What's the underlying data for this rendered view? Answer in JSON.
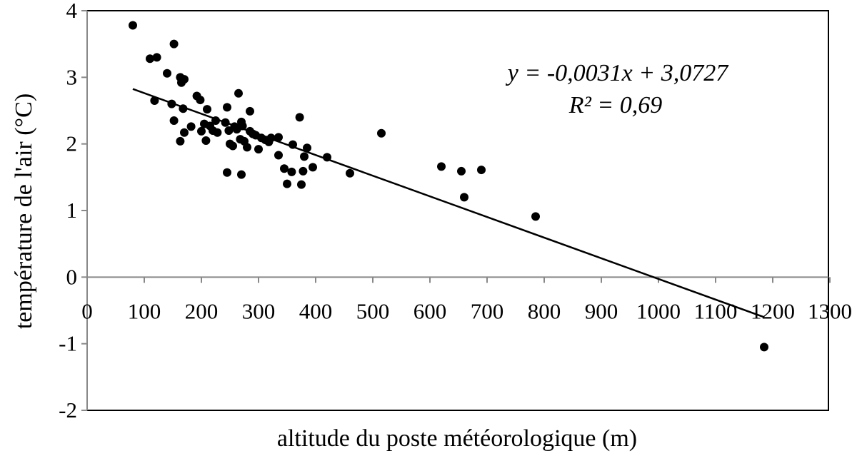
{
  "chart_data": {
    "type": "scatter",
    "title": "",
    "xlabel": "altitude du poste météorologique (m)",
    "ylabel": "température de l'air (°C)",
    "xlim": [
      0,
      1300
    ],
    "ylim": [
      -2,
      4
    ],
    "x_ticks": [
      "0",
      "100",
      "200",
      "300",
      "400",
      "500",
      "600",
      "700",
      "800",
      "900",
      "1000",
      "1100",
      "1200",
      "1300"
    ],
    "y_ticks": [
      "4",
      "3",
      "2",
      "1",
      "0",
      "-1",
      "-2"
    ],
    "grid": false,
    "legend": "none",
    "trendline": {
      "type": "linear",
      "slope": -0.0031,
      "intercept": 3.0727,
      "x_range": [
        80,
        1185
      ],
      "equation": "y = -0,0031x + 3,0727",
      "r2": "R² = 0,69"
    },
    "series": [
      {
        "points": [
          [
            80,
            3.78
          ],
          [
            110,
            3.28
          ],
          [
            122,
            3.3
          ],
          [
            118,
            2.65
          ],
          [
            140,
            3.06
          ],
          [
            152,
            3.5
          ],
          [
            148,
            2.6
          ],
          [
            152,
            2.35
          ],
          [
            163,
            3.0
          ],
          [
            165,
            2.92
          ],
          [
            170,
            2.97
          ],
          [
            168,
            2.53
          ],
          [
            170,
            2.17
          ],
          [
            163,
            2.04
          ],
          [
            182,
            2.26
          ],
          [
            192,
            2.72
          ],
          [
            198,
            2.66
          ],
          [
            210,
            2.52
          ],
          [
            205,
            2.3
          ],
          [
            200,
            2.19
          ],
          [
            208,
            2.05
          ],
          [
            215,
            2.27
          ],
          [
            220,
            2.2
          ],
          [
            225,
            2.35
          ],
          [
            228,
            2.17
          ],
          [
            245,
            2.55
          ],
          [
            242,
            2.32
          ],
          [
            248,
            2.2
          ],
          [
            250,
            2.0
          ],
          [
            255,
            1.97
          ],
          [
            258,
            2.26
          ],
          [
            262,
            2.22
          ],
          [
            265,
            2.76
          ],
          [
            268,
            2.07
          ],
          [
            270,
            2.33
          ],
          [
            272,
            2.27
          ],
          [
            275,
            2.04
          ],
          [
            280,
            1.95
          ],
          [
            285,
            2.49
          ],
          [
            285,
            2.19
          ],
          [
            290,
            2.15
          ],
          [
            295,
            2.13
          ],
          [
            300,
            1.92
          ],
          [
            305,
            2.09
          ],
          [
            312,
            2.06
          ],
          [
            318,
            2.03
          ],
          [
            322,
            2.09
          ],
          [
            335,
            2.1
          ],
          [
            335,
            1.83
          ],
          [
            345,
            1.63
          ],
          [
            350,
            1.4
          ],
          [
            358,
            1.58
          ],
          [
            360,
            1.99
          ],
          [
            372,
            2.4
          ],
          [
            378,
            1.59
          ],
          [
            375,
            1.39
          ],
          [
            380,
            1.81
          ],
          [
            385,
            1.94
          ],
          [
            395,
            1.65
          ],
          [
            420,
            1.8
          ],
          [
            245,
            1.57
          ],
          [
            270,
            1.54
          ],
          [
            460,
            1.56
          ],
          [
            515,
            2.16
          ],
          [
            620,
            1.66
          ],
          [
            655,
            1.59
          ],
          [
            660,
            1.2
          ],
          [
            690,
            1.61
          ],
          [
            785,
            0.91
          ],
          [
            1185,
            -1.05
          ]
        ]
      }
    ]
  }
}
